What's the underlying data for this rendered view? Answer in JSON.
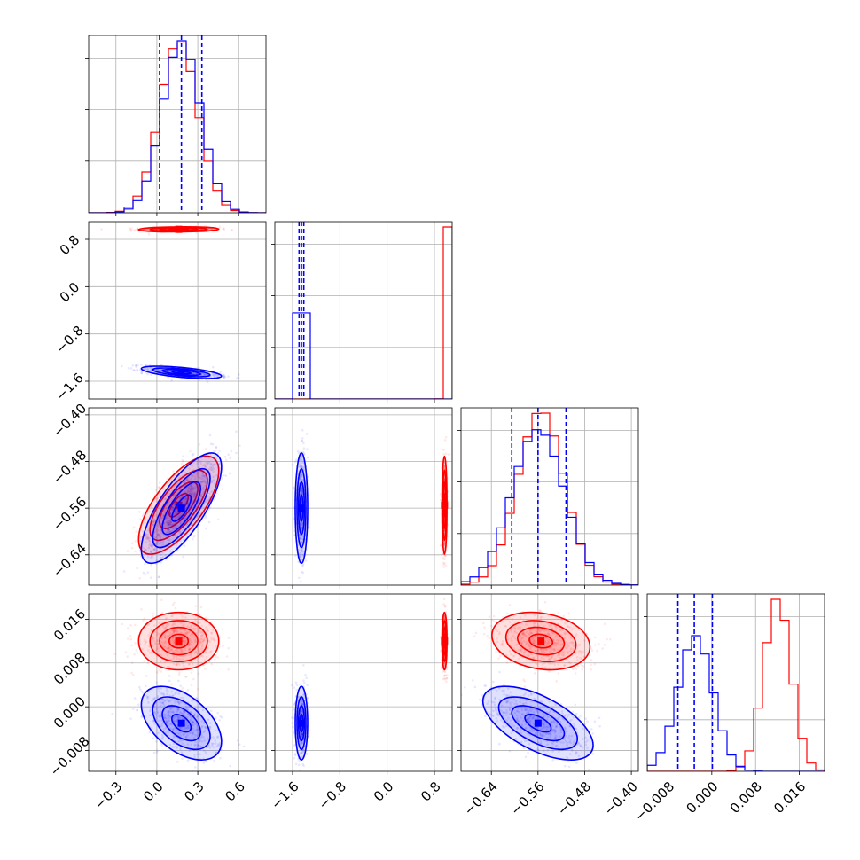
{
  "chart_data": {
    "type": "corner",
    "grid": true,
    "parameters": [
      {
        "range": [
          -0.5,
          0.8
        ],
        "ticks": [
          -0.3,
          0.0,
          0.3,
          0.6
        ],
        "tick_labels": [
          "−0.3",
          "0.0",
          "0.3",
          "0.6"
        ]
      },
      {
        "range": [
          -1.9,
          1.1
        ],
        "ticks": [
          -1.6,
          -0.8,
          0.0,
          0.8
        ],
        "tick_labels": [
          "−1.6",
          "−0.8",
          "0.0",
          "0.8"
        ]
      },
      {
        "range": [
          -0.692,
          -0.388
        ],
        "ticks": [
          -0.64,
          -0.56,
          -0.48,
          -0.4
        ],
        "tick_labels": [
          "−0.64",
          "−0.56",
          "−0.48",
          "−0.40"
        ]
      },
      {
        "range": [
          -0.0118,
          0.0206
        ],
        "ticks": [
          -0.008,
          0.0,
          0.008,
          0.016
        ],
        "tick_labels": [
          "−0.008",
          "0.000",
          "0.008",
          "0.016"
        ]
      }
    ],
    "series": [
      {
        "color": "#ff0000",
        "means": [
          0.16,
          0.97,
          -0.555,
          0.012
        ],
        "sds": [
          0.14,
          0.02,
          0.04,
          0.0025
        ],
        "correlations": [
          [
            0,
            1,
            0.1
          ],
          [
            0,
            2,
            0.7
          ],
          [
            0,
            3,
            0.0
          ],
          [
            1,
            2,
            0.0
          ],
          [
            1,
            3,
            0.0
          ],
          [
            2,
            3,
            -0.2
          ]
        ],
        "quantiles": []
      },
      {
        "color": "#0000ff",
        "means": [
          0.18,
          -1.45,
          -0.56,
          -0.003
        ],
        "sds": [
          0.14,
          0.05,
          0.045,
          0.0032
        ],
        "correlations": [
          [
            0,
            1,
            -0.6
          ],
          [
            0,
            2,
            0.75
          ],
          [
            0,
            3,
            -0.5
          ],
          [
            1,
            2,
            0.0
          ],
          [
            1,
            3,
            0.0
          ],
          [
            2,
            3,
            -0.6
          ]
        ],
        "quantiles": [
          [
            0.02,
            0.18,
            0.33
          ],
          [
            -1.49,
            -1.45,
            -1.41
          ],
          [
            -0.605,
            -0.56,
            -0.512
          ],
          [
            -0.0062,
            -0.0032,
            0.0001
          ]
        ]
      }
    ]
  }
}
